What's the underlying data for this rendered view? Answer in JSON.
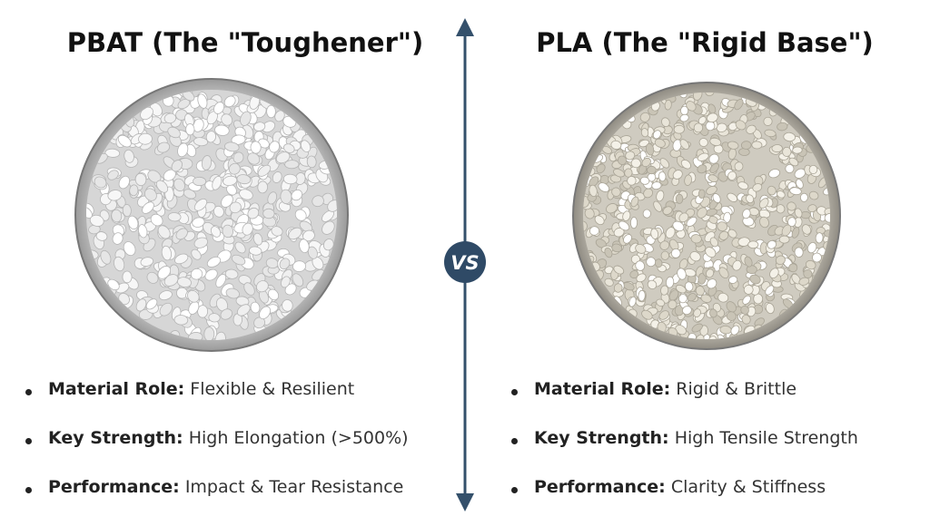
{
  "left": {
    "title": "PBAT (The \"Toughener\")",
    "bullets": [
      {
        "label": "Material Role:",
        "text": "Flexible & Resilient"
      },
      {
        "label": "Key Strength:",
        "text": "High Elongation (>500%)"
      },
      {
        "label": "Performance:",
        "text": "Impact & Tear Resistance"
      }
    ]
  },
  "right": {
    "title": "PLA (The \"Rigid Base\")",
    "bullets": [
      {
        "label": "Material Role:",
        "text": "Rigid & Brittle"
      },
      {
        "label": "Key Strength:",
        "text": "High Tensile Strength"
      },
      {
        "label": "Performance:",
        "text": "Clarity & Stiffness"
      }
    ]
  },
  "divider": {
    "label": "VS"
  }
}
